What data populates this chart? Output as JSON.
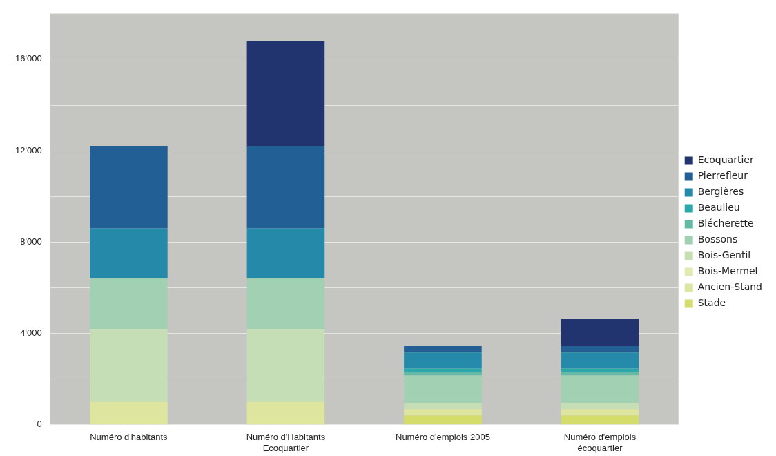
{
  "chart_data": {
    "type": "bar",
    "stacked": true,
    "legend": "right",
    "grid": "y",
    "categories": [
      "Numéro d'habitants",
      "Numéro d'Habitants Ecoquartier",
      "Numéro d'emplois 2005",
      "Numéro d'emplois écoquartier"
    ],
    "ylim": [
      0,
      18000
    ],
    "yticks": [
      0,
      {
        "value": 2000,
        "label": null
      },
      {
        "value": 4000,
        "label": "4'000"
      },
      {
        "value": 6000,
        "label": null
      },
      {
        "value": 8000,
        "label": "8'000"
      },
      {
        "value": 10000,
        "label": null
      },
      {
        "value": 12000,
        "label": "12'000"
      },
      {
        "value": 14000,
        "label": null
      },
      {
        "value": 16000,
        "label": "16'000"
      },
      {
        "value": 18000,
        "label": null
      }
    ],
    "series": [
      {
        "name": "Stade",
        "color": "#d4dc6c",
        "values": [
          null,
          null,
          400,
          400
        ]
      },
      {
        "name": "Ancien-Stand",
        "color": "#dee59e",
        "values": [
          1000,
          1000,
          280,
          280
        ]
      },
      {
        "name": "Bois-Mermet",
        "color": "#e3eab0",
        "values": [
          null,
          null,
          null,
          null
        ]
      },
      {
        "name": "Bois-Gentil",
        "color": "#c5deb5",
        "values": [
          3200,
          3200,
          280,
          280
        ]
      },
      {
        "name": "Bossons",
        "color": "#a2d0b3",
        "values": [
          2200,
          2200,
          1200,
          1200
        ]
      },
      {
        "name": "Blécherette",
        "color": "#64b9a5",
        "values": [
          null,
          null,
          150,
          150
        ]
      },
      {
        "name": "Beaulieu",
        "color": "#2aa8aa",
        "values": [
          null,
          null,
          150,
          150
        ]
      },
      {
        "name": "Bergières",
        "color": "#258aaa",
        "values": [
          2200,
          2200,
          700,
          700
        ]
      },
      {
        "name": "Pierrefleur",
        "color": "#215f94",
        "values": [
          3600,
          3600,
          280,
          280
        ]
      },
      {
        "name": "Ecoquartier",
        "color": "#22346f",
        "values": [
          null,
          4600,
          null,
          1200
        ]
      }
    ]
  }
}
